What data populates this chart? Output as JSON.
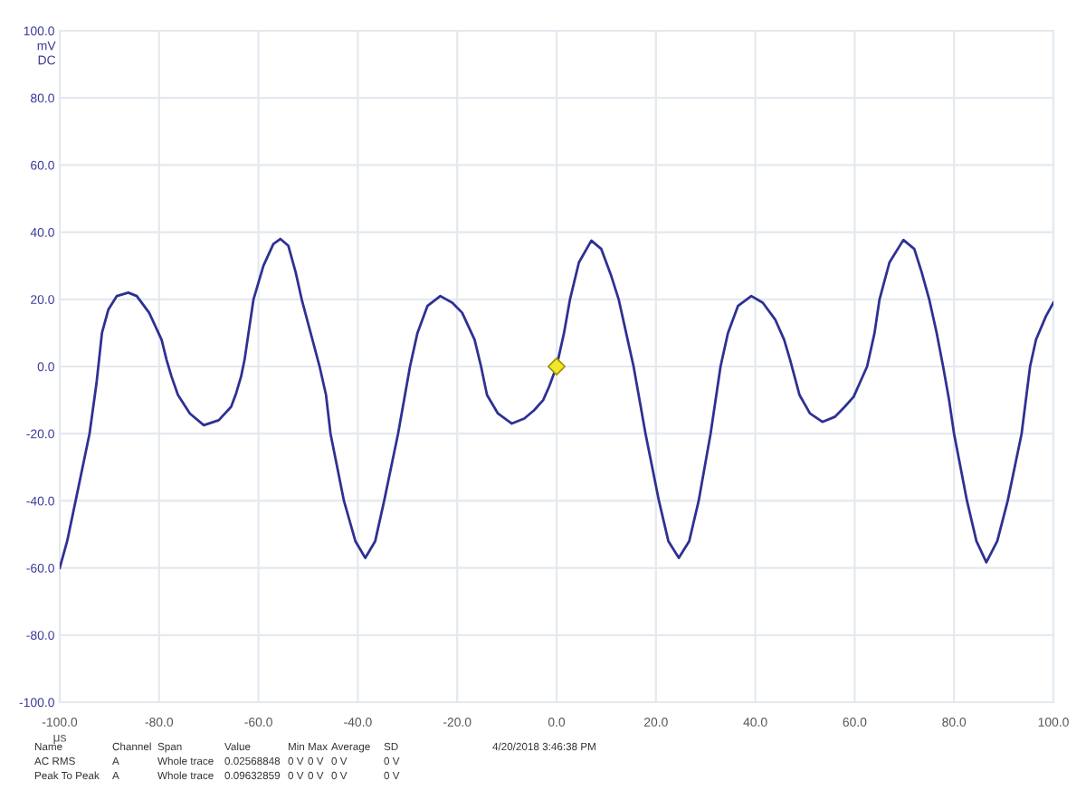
{
  "chart_data": {
    "type": "line",
    "xlabel": "μs",
    "ylabel": "mV\nDC",
    "series": [
      {
        "color": "#2e3192",
        "marker": "none",
        "line_style": "solid",
        "x": [
          -100,
          -98.5,
          -96.8,
          -94,
          -92.6,
          -91.5,
          -90.2,
          -88.5,
          -86.2,
          -84.5,
          -82,
          -79.5,
          -78.5,
          -77.5,
          -76.2,
          -73.8,
          -71,
          -68,
          -65.5,
          -64.5,
          -63.5,
          -62.8,
          -62,
          -61,
          -59,
          -57,
          -55.6,
          -54,
          -52.5,
          -51.3,
          -49.5,
          -47.7,
          -46.4,
          -45.5,
          -42.8,
          -40.5,
          -38.5,
          -36.5,
          -34.7,
          -31.9,
          -29.5,
          -28,
          -26,
          -23.4,
          -21,
          -19,
          -16.5,
          -15.2,
          -14,
          -11.8,
          -9,
          -6.5,
          -4.5,
          -2.7,
          -1.5,
          0,
          1.5,
          2.7,
          4.5,
          7,
          9,
          11,
          12.5,
          14,
          15.5,
          16.7,
          17.9,
          20.6,
          22.5,
          24.6,
          26.7,
          28.6,
          31,
          33,
          34.5,
          36.5,
          39.2,
          41.5,
          44,
          45.8,
          47,
          48.9,
          51,
          53.5,
          56,
          58,
          59.8,
          61,
          62.5,
          64,
          65,
          67,
          69.8,
          72,
          73.5,
          75,
          76.5,
          77.8,
          79,
          80,
          82.6,
          84.5,
          86.5,
          88.7,
          90.8,
          93.6,
          95.3,
          96.5,
          98.5,
          100
        ],
        "values": [
          -60,
          -52,
          -40,
          -20,
          -5,
          10,
          17,
          21,
          22,
          21,
          16,
          8,
          2,
          -3,
          -8.5,
          -14,
          -17.5,
          -16,
          -12,
          -8,
          -3,
          2,
          10,
          20,
          30,
          36.5,
          38,
          36,
          28,
          20,
          10,
          0,
          -8.5,
          -20,
          -40,
          -52,
          -57,
          -52,
          -40,
          -20,
          0,
          10,
          18,
          21,
          19,
          16,
          8,
          0,
          -8.5,
          -14,
          -17,
          -15.5,
          -13,
          -10,
          -6,
          0,
          10,
          20,
          31,
          37.5,
          35,
          27,
          20,
          10,
          0,
          -10,
          -20,
          -40,
          -52,
          -57,
          -52,
          -40,
          -20,
          0,
          10,
          18,
          21,
          19,
          14,
          8,
          2,
          -8.5,
          -14,
          -16.5,
          -15,
          -12,
          -9,
          -5,
          0,
          10,
          20,
          31,
          37.7,
          35,
          28,
          20,
          10,
          0,
          -10,
          -20,
          -40,
          -52,
          -58.3,
          -52,
          -40,
          -20,
          0,
          8,
          15,
          19
        ]
      },
      {
        "type": "scatter",
        "color": "#f2e52a",
        "marker": "diamond",
        "x": [
          0
        ],
        "values": [
          0
        ]
      }
    ],
    "xlim": [
      -100,
      100
    ],
    "xticks": [
      {
        "value": -100,
        "label": "-100.0"
      },
      {
        "value": -80,
        "label": "-80.0"
      },
      {
        "value": -60,
        "label": "-60.0"
      },
      {
        "value": -40,
        "label": "-40.0"
      },
      {
        "value": -20,
        "label": "-20.0"
      },
      {
        "value": 0,
        "label": "0.0"
      },
      {
        "value": 20,
        "label": "20.0"
      },
      {
        "value": 40,
        "label": "40.0"
      },
      {
        "value": 60,
        "label": "60.0"
      },
      {
        "value": 80,
        "label": "80.0"
      },
      {
        "value": 100,
        "label": "100.0"
      }
    ],
    "ylim": [
      -100,
      100
    ],
    "yticks": [
      {
        "value": -100,
        "label": "-100.0"
      },
      {
        "value": -80,
        "label": "-80.0"
      },
      {
        "value": -60,
        "label": "-60.0"
      },
      {
        "value": -40,
        "label": "-40.0"
      },
      {
        "value": -20,
        "label": "-20.0"
      },
      {
        "value": 0,
        "label": "0.0"
      },
      {
        "value": 20,
        "label": "20.0"
      },
      {
        "value": 40,
        "label": "40.0"
      },
      {
        "value": 60,
        "label": "60.0"
      },
      {
        "value": 80,
        "label": "80.0"
      },
      {
        "value": 100,
        "label": "100.0"
      }
    ],
    "grid": true,
    "legend": false,
    "annotations": [
      "Name",
      "Channel",
      "Span",
      "Value",
      "Min",
      "Max",
      "Average",
      "SD",
      "AC RMS",
      "A",
      "Whole trace",
      "0.02568848",
      "0 V",
      "0 V",
      "0 V",
      "0 V",
      "Peak To Peak",
      "A",
      "Whole trace",
      "0.09632859",
      "0 V",
      "0 V",
      "0 V",
      "0 V",
      "4/20/2018 3:46:38 PM"
    ]
  }
}
